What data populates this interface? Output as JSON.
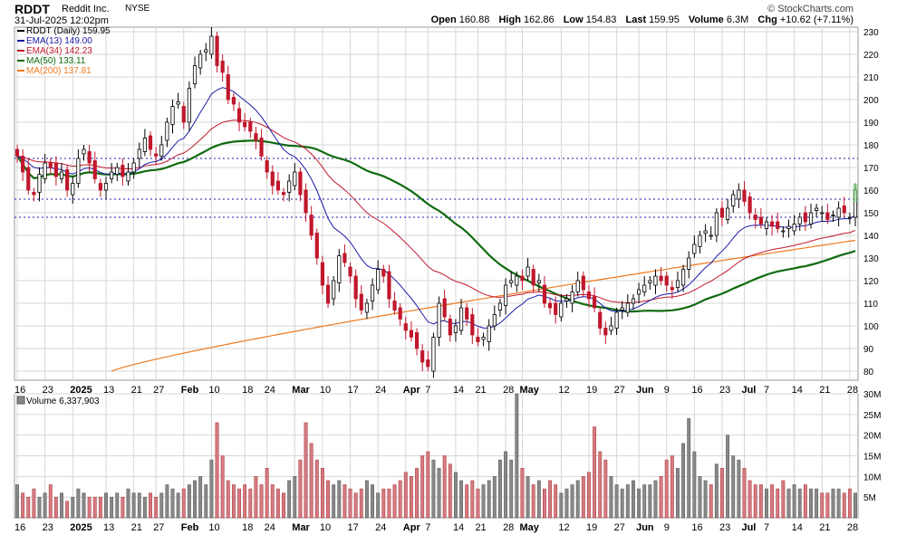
{
  "header": {
    "symbol": "RDDT",
    "company": "Reddit Inc.",
    "exchange": "NYSE",
    "timestamp": "31-Jul-2025 12:02pm",
    "copyright": "© StockCharts.com",
    "open_label": "Open",
    "open": "160.88",
    "high_label": "High",
    "high": "162.86",
    "low_label": "Low",
    "low": "154.83",
    "last_label": "Last",
    "last": "159.95",
    "volume_label": "Volume",
    "volume": "6.3M",
    "chg_label": "Chg",
    "chg": "+10.62 (+7.11%)"
  },
  "legend": [
    {
      "label": "RDDT (Daily) 159.95",
      "color": "#000000"
    },
    {
      "label": "EMA(13) 149.00",
      "color": "#1a1aa6"
    },
    {
      "label": "EMA(34) 142.23",
      "color": "#c0172c"
    },
    {
      "label": "MA(50) 133.11",
      "color": "#0f6b0f"
    },
    {
      "label": "MA(200) 137.81",
      "color": "#ee7a1f"
    }
  ],
  "volume_legend": "Volume 6,337,903",
  "colors": {
    "up": "#ffffff",
    "down": "#c0172c",
    "down_fill": "#c0172c",
    "vol_up": "#888888",
    "vol_down": "#d47a82",
    "grid": "#d6d6d6",
    "hline": "#1a1ab0"
  },
  "chart_data": [
    {
      "type": "candlestick",
      "title": "RDDT (Daily)",
      "y_axis_side": "right",
      "ylim": [
        76,
        232
      ],
      "yticks": [
        80,
        90,
        100,
        110,
        120,
        130,
        140,
        150,
        160,
        170,
        180,
        190,
        200,
        210,
        220,
        230
      ],
      "x_ticks": [
        {
          "label": "16",
          "index": 0
        },
        {
          "label": "23",
          "index": 5
        },
        {
          "label": "2025",
          "index": 10
        },
        {
          "label": "13",
          "index": 16
        },
        {
          "label": "21",
          "index": 21
        },
        {
          "label": "27",
          "index": 25
        },
        {
          "label": "Feb",
          "index": 30
        },
        {
          "label": "10",
          "index": 35
        },
        {
          "label": "18",
          "index": 41
        },
        {
          "label": "24",
          "index": 45
        },
        {
          "label": "Mar",
          "index": 50
        },
        {
          "label": "10",
          "index": 55
        },
        {
          "label": "17",
          "index": 60
        },
        {
          "label": "24",
          "index": 65
        },
        {
          "label": "Apr",
          "index": 70
        },
        {
          "label": "7",
          "index": 74
        },
        {
          "label": "14",
          "index": 79
        },
        {
          "label": "21",
          "index": 83
        },
        {
          "label": "28",
          "index": 88
        },
        {
          "label": "May",
          "index": 91
        },
        {
          "label": "12",
          "index": 98
        },
        {
          "label": "19",
          "index": 103
        },
        {
          "label": "27",
          "index": 108
        },
        {
          "label": "Jun",
          "index": 112
        },
        {
          "label": "9",
          "index": 117
        },
        {
          "label": "16",
          "index": 122
        },
        {
          "label": "23",
          "index": 127
        },
        {
          "label": "Jul",
          "index": 131
        },
        {
          "label": "7",
          "index": 135
        },
        {
          "label": "14",
          "index": 140
        },
        {
          "label": "21",
          "index": 145
        },
        {
          "label": "28",
          "index": 150
        }
      ],
      "horizontal_lines": [
        148,
        156,
        174
      ],
      "close": [
        175,
        168,
        160,
        158,
        167,
        172,
        170,
        166,
        168,
        160,
        163,
        174,
        178,
        172,
        165,
        160,
        163,
        168,
        170,
        166,
        168,
        172,
        178,
        183,
        178,
        175,
        180,
        190,
        197,
        199,
        190,
        205,
        215,
        220,
        222,
        228,
        215,
        212,
        200,
        198,
        190,
        188,
        186,
        182,
        175,
        168,
        162,
        160,
        158,
        164,
        168,
        158,
        150,
        140,
        130,
        118,
        110,
        120,
        131,
        128,
        122,
        112,
        107,
        110,
        118,
        125,
        122,
        112,
        107,
        103,
        98,
        95,
        90,
        84,
        82,
        95,
        110,
        104,
        96,
        100,
        108,
        103,
        96,
        93,
        95,
        100,
        105,
        110,
        118,
        120,
        122,
        120,
        126,
        118,
        120,
        110,
        108,
        105,
        110,
        112,
        115,
        120,
        116,
        112,
        108,
        99,
        96,
        100,
        106,
        108,
        110,
        112,
        116,
        118,
        120,
        122,
        120,
        118,
        116,
        120,
        125,
        130,
        136,
        140,
        142,
        140,
        150,
        148,
        152,
        158,
        160,
        155,
        150,
        147,
        145,
        146,
        144,
        143,
        142,
        144,
        145,
        148,
        146,
        150,
        152,
        150,
        147,
        149,
        152,
        150,
        148,
        160
      ],
      "note": "OHLC per session derived from close series; highs/lows extend a few points beyond body",
      "ema13": {
        "name": "EMA(13)",
        "last": 149.0
      },
      "ema34": {
        "name": "EMA(34)",
        "last": 142.23
      },
      "ma50": {
        "name": "MA(50)",
        "last": 133.11
      },
      "ma200": {
        "name": "MA(200)",
        "last": 137.81,
        "start_index": 17,
        "start_value": 80
      }
    },
    {
      "type": "bar",
      "title": "Volume",
      "y_axis_side": "right",
      "ylim": [
        0,
        30
      ],
      "yticks": [
        5,
        10,
        15,
        20,
        25,
        30
      ],
      "ytick_labels": [
        "5M",
        "10M",
        "15M",
        "20M",
        "25M",
        "30M"
      ],
      "unit": "M",
      "values": [
        8,
        6,
        5,
        7,
        5,
        6,
        8,
        5,
        6,
        4,
        5,
        7,
        6,
        5,
        5,
        5,
        6,
        5,
        6,
        5,
        7,
        6,
        6,
        5,
        6,
        5,
        6,
        8,
        7,
        6,
        7,
        8,
        9,
        10,
        8,
        14,
        23,
        15,
        9,
        8,
        7,
        8,
        7,
        10,
        8,
        12,
        8,
        7,
        6,
        9,
        10,
        14,
        23,
        18,
        14,
        12,
        9,
        8,
        9,
        8,
        7,
        6,
        7,
        9,
        8,
        6,
        7,
        7,
        8,
        9,
        11,
        10,
        12,
        15,
        16,
        14,
        12,
        15,
        13,
        11,
        9,
        8,
        9,
        7,
        8,
        9,
        10,
        14,
        16,
        14,
        30,
        12,
        10,
        8,
        9,
        7,
        9,
        8,
        6,
        7,
        8,
        9,
        10,
        11,
        22,
        16,
        14,
        10,
        8,
        7,
        8,
        9,
        7,
        8,
        8,
        9,
        10,
        14,
        15,
        12,
        18,
        24,
        16,
        10,
        9,
        8,
        13,
        12,
        20,
        15,
        14,
        12,
        9,
        8,
        8,
        7,
        8,
        7,
        9,
        7,
        8,
        7,
        8,
        7,
        7,
        6,
        6,
        7,
        7,
        6,
        7,
        6
      ]
    }
  ]
}
